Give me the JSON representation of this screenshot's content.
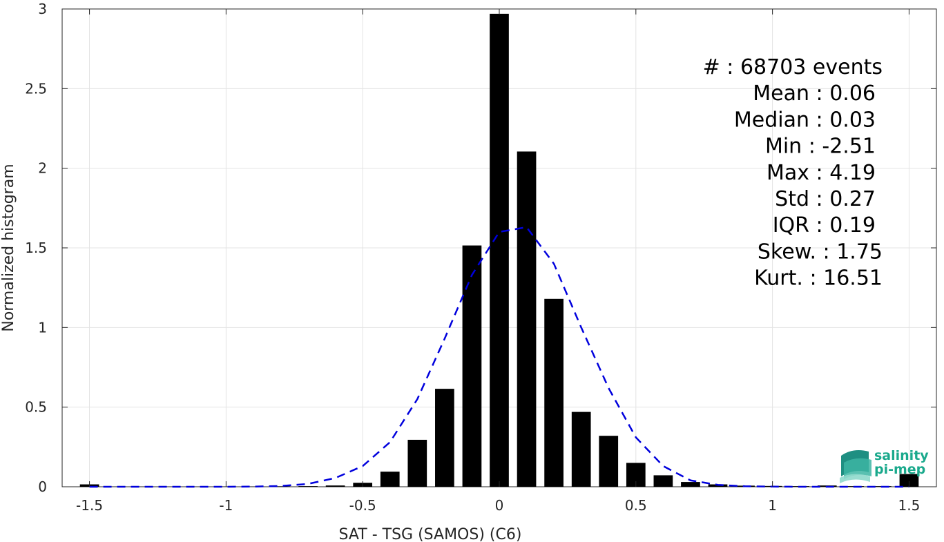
{
  "chart_data": {
    "type": "bar",
    "xlabel": "SAT - TSG (SAMOS) (C6)",
    "ylabel": "Normalized histogram",
    "xlim": [
      -1.6,
      1.6
    ],
    "ylim": [
      0,
      3
    ],
    "xticks": [
      -1.5,
      -1,
      -0.5,
      0,
      0.5,
      1,
      1.5
    ],
    "yticks": [
      0,
      0.5,
      1,
      1.5,
      2,
      2.5,
      3
    ],
    "grid": true,
    "bar_color": "#000000",
    "fit_color": "#0000dd",
    "bin_width": 0.1,
    "bars": {
      "x": [
        -1.5,
        -1.4,
        -1.3,
        -1.2,
        -1.1,
        -1.0,
        -0.9,
        -0.8,
        -0.7,
        -0.6,
        -0.5,
        -0.4,
        -0.3,
        -0.2,
        -0.1,
        0.0,
        0.1,
        0.2,
        0.3,
        0.4,
        0.5,
        0.6,
        0.7,
        0.8,
        0.9,
        1.0,
        1.1,
        1.2,
        1.3,
        1.4,
        1.5
      ],
      "y": [
        0.015,
        0.001,
        0.001,
        0.001,
        0.001,
        0.002,
        0.002,
        0.003,
        0.004,
        0.008,
        0.025,
        0.095,
        0.295,
        0.615,
        1.515,
        2.97,
        2.105,
        1.18,
        0.47,
        0.32,
        0.15,
        0.072,
        0.03,
        0.015,
        0.007,
        0.005,
        0.004,
        0.008,
        0.004,
        0.004,
        0.08
      ]
    },
    "fit_curve": {
      "style": "dashed",
      "x": [
        -1.5,
        -1.4,
        -1.3,
        -1.2,
        -1.1,
        -1.0,
        -0.9,
        -0.8,
        -0.7,
        -0.6,
        -0.5,
        -0.4,
        -0.3,
        -0.2,
        -0.1,
        0.0,
        0.1,
        0.2,
        0.3,
        0.4,
        0.5,
        0.6,
        0.7,
        0.8,
        0.9,
        1.0,
        1.1,
        1.2,
        1.3,
        1.4,
        1.5
      ],
      "y": [
        0.0,
        0.0,
        0.0,
        0.0,
        0.0,
        0.0,
        0.001,
        0.005,
        0.018,
        0.055,
        0.13,
        0.28,
        0.55,
        0.93,
        1.33,
        1.6,
        1.63,
        1.4,
        1.0,
        0.62,
        0.31,
        0.13,
        0.04,
        0.012,
        0.003,
        0.001,
        0.0,
        0.0,
        0.0,
        0.0,
        0.0
      ]
    },
    "annotations": [
      "#  : 68703 events",
      "Mean : 0.06",
      "Median : 0.03",
      "Min : -2.51",
      "Max : 4.19",
      "Std : 0.27",
      "IQR : 0.19",
      "Skew. : 1.75",
      "Kurt. : 16.51"
    ]
  },
  "logo": {
    "line1": "salinity",
    "line2": "pi-mep"
  }
}
